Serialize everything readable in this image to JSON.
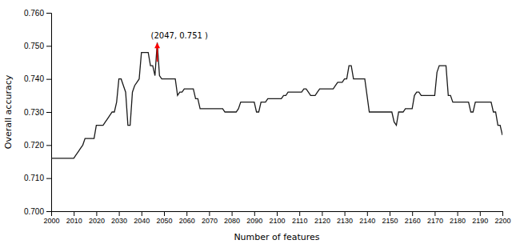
{
  "chart_data": {
    "type": "line",
    "xlabel": "Number of features",
    "ylabel": "Overall accuracy",
    "color": "#1a1a1a",
    "grid": false,
    "xlim": [
      2000,
      2200
    ],
    "ylim": [
      0.7,
      0.76
    ],
    "xticks": [
      2000,
      2010,
      2020,
      2030,
      2040,
      2050,
      2060,
      2070,
      2080,
      2090,
      2100,
      2110,
      2120,
      2130,
      2140,
      2150,
      2160,
      2170,
      2180,
      2190,
      2200
    ],
    "yticks": [
      {
        "value": 0.7,
        "label": "0.700"
      },
      {
        "value": 0.71,
        "label": "0.710"
      },
      {
        "value": 0.72,
        "label": "0.720"
      },
      {
        "value": 0.73,
        "label": "0.730"
      },
      {
        "value": 0.74,
        "label": "0.740"
      },
      {
        "value": 0.75,
        "label": "0.750"
      },
      {
        "value": 0.76,
        "label": "0.760"
      }
    ],
    "annotations": [
      {
        "text": "(2047, 0.751 )",
        "x": 2047,
        "y": 0.751,
        "color": "red"
      }
    ],
    "x": [
      2000,
      2001,
      2002,
      2003,
      2004,
      2005,
      2006,
      2007,
      2008,
      2009,
      2010,
      2011,
      2012,
      2013,
      2014,
      2015,
      2016,
      2017,
      2018,
      2019,
      2020,
      2021,
      2022,
      2023,
      2024,
      2025,
      2026,
      2027,
      2028,
      2029,
      2030,
      2031,
      2032,
      2033,
      2034,
      2035,
      2036,
      2037,
      2038,
      2039,
      2040,
      2041,
      2042,
      2043,
      2044,
      2045,
      2046,
      2047,
      2048,
      2049,
      2050,
      2051,
      2052,
      2053,
      2054,
      2055,
      2056,
      2057,
      2058,
      2059,
      2060,
      2061,
      2062,
      2063,
      2064,
      2065,
      2066,
      2067,
      2068,
      2069,
      2070,
      2071,
      2072,
      2073,
      2074,
      2075,
      2076,
      2077,
      2078,
      2079,
      2080,
      2081,
      2082,
      2083,
      2084,
      2085,
      2086,
      2087,
      2088,
      2089,
      2090,
      2091,
      2092,
      2093,
      2094,
      2095,
      2096,
      2097,
      2098,
      2099,
      2100,
      2101,
      2102,
      2103,
      2104,
      2105,
      2106,
      2107,
      2108,
      2109,
      2110,
      2111,
      2112,
      2113,
      2114,
      2115,
      2116,
      2117,
      2118,
      2119,
      2120,
      2121,
      2122,
      2123,
      2124,
      2125,
      2126,
      2127,
      2128,
      2129,
      2130,
      2131,
      2132,
      2133,
      2134,
      2135,
      2136,
      2137,
      2138,
      2139,
      2140,
      2141,
      2142,
      2143,
      2144,
      2145,
      2146,
      2147,
      2148,
      2149,
      2150,
      2151,
      2152,
      2153,
      2154,
      2155,
      2156,
      2157,
      2158,
      2159,
      2160,
      2161,
      2162,
      2163,
      2164,
      2165,
      2166,
      2167,
      2168,
      2169,
      2170,
      2171,
      2172,
      2173,
      2174,
      2175,
      2176,
      2177,
      2178,
      2179,
      2180,
      2181,
      2182,
      2183,
      2184,
      2185,
      2186,
      2187,
      2188,
      2189,
      2190,
      2191,
      2192,
      2193,
      2194,
      2195,
      2196,
      2197,
      2198,
      2199,
      2200
    ],
    "values": [
      0.716,
      0.716,
      0.716,
      0.716,
      0.716,
      0.716,
      0.716,
      0.716,
      0.716,
      0.716,
      0.716,
      0.717,
      0.718,
      0.719,
      0.72,
      0.722,
      0.722,
      0.722,
      0.722,
      0.722,
      0.726,
      0.726,
      0.726,
      0.726,
      0.727,
      0.728,
      0.729,
      0.73,
      0.73,
      0.733,
      0.74,
      0.74,
      0.738,
      0.736,
      0.726,
      0.726,
      0.736,
      0.738,
      0.739,
      0.74,
      0.748,
      0.748,
      0.748,
      0.748,
      0.744,
      0.744,
      0.741,
      0.751,
      0.741,
      0.74,
      0.74,
      0.74,
      0.74,
      0.74,
      0.74,
      0.74,
      0.735,
      0.736,
      0.736,
      0.737,
      0.737,
      0.737,
      0.737,
      0.737,
      0.734,
      0.734,
      0.731,
      0.731,
      0.731,
      0.731,
      0.731,
      0.731,
      0.731,
      0.731,
      0.731,
      0.731,
      0.731,
      0.73,
      0.73,
      0.73,
      0.73,
      0.73,
      0.73,
      0.731,
      0.733,
      0.733,
      0.733,
      0.733,
      0.733,
      0.733,
      0.733,
      0.73,
      0.73,
      0.733,
      0.733,
      0.733,
      0.734,
      0.734,
      0.734,
      0.734,
      0.734,
      0.734,
      0.734,
      0.735,
      0.735,
      0.736,
      0.736,
      0.736,
      0.736,
      0.736,
      0.736,
      0.736,
      0.737,
      0.737,
      0.736,
      0.735,
      0.735,
      0.735,
      0.736,
      0.737,
      0.737,
      0.737,
      0.737,
      0.737,
      0.737,
      0.737,
      0.738,
      0.739,
      0.739,
      0.739,
      0.74,
      0.74,
      0.744,
      0.744,
      0.74,
      0.74,
      0.74,
      0.74,
      0.74,
      0.74,
      0.735,
      0.73,
      0.73,
      0.73,
      0.73,
      0.73,
      0.73,
      0.73,
      0.73,
      0.73,
      0.73,
      0.73,
      0.727,
      0.726,
      0.73,
      0.73,
      0.73,
      0.731,
      0.731,
      0.731,
      0.731,
      0.735,
      0.736,
      0.736,
      0.735,
      0.735,
      0.735,
      0.735,
      0.735,
      0.735,
      0.735,
      0.742,
      0.744,
      0.744,
      0.744,
      0.744,
      0.735,
      0.735,
      0.733,
      0.733,
      0.733,
      0.733,
      0.733,
      0.733,
      0.733,
      0.733,
      0.73,
      0.73,
      0.733,
      0.733,
      0.733,
      0.733,
      0.733,
      0.733,
      0.733,
      0.733,
      0.73,
      0.73,
      0.726,
      0.726,
      0.723
    ]
  }
}
